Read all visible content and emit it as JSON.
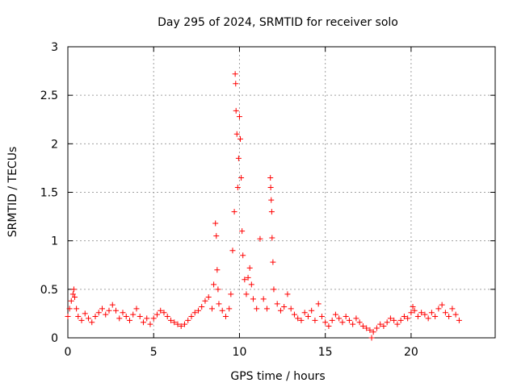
{
  "chart_data": {
    "type": "scatter",
    "title": "Day 295 of 2024, SRMTID for receiver solo",
    "xlabel": "GPS time / hours",
    "ylabel": "SRMTID / TECUs",
    "xlim": [
      0,
      24.9
    ],
    "ylim": [
      0,
      3
    ],
    "xticks": [
      0,
      5,
      10,
      15,
      20
    ],
    "xtick_labels": [
      "0",
      "5",
      "10",
      "15",
      "20"
    ],
    "yticks": [
      0,
      0.5,
      1,
      1.5,
      2,
      2.5,
      3
    ],
    "ytick_labels": [
      "0",
      "0.5",
      "1",
      "1.5",
      "2",
      "2.5",
      "3"
    ],
    "grid": true,
    "marker": "+",
    "series": [
      {
        "name": "SRMTID",
        "color": "#ff0000",
        "points": [
          [
            0.0,
            0.22
          ],
          [
            0.1,
            0.3
          ],
          [
            0.2,
            0.38
          ],
          [
            0.3,
            0.45
          ],
          [
            0.35,
            0.5
          ],
          [
            0.4,
            0.42
          ],
          [
            0.5,
            0.3
          ],
          [
            0.6,
            0.22
          ],
          [
            0.8,
            0.18
          ],
          [
            1.0,
            0.25
          ],
          [
            1.2,
            0.2
          ],
          [
            1.4,
            0.16
          ],
          [
            1.6,
            0.22
          ],
          [
            1.8,
            0.26
          ],
          [
            2.0,
            0.3
          ],
          [
            2.2,
            0.24
          ],
          [
            2.4,
            0.28
          ],
          [
            2.6,
            0.34
          ],
          [
            2.8,
            0.28
          ],
          [
            3.0,
            0.2
          ],
          [
            3.2,
            0.26
          ],
          [
            3.4,
            0.22
          ],
          [
            3.6,
            0.18
          ],
          [
            3.8,
            0.24
          ],
          [
            4.0,
            0.3
          ],
          [
            4.2,
            0.22
          ],
          [
            4.4,
            0.16
          ],
          [
            4.6,
            0.2
          ],
          [
            4.8,
            0.14
          ],
          [
            5.0,
            0.2
          ],
          [
            5.2,
            0.24
          ],
          [
            5.4,
            0.28
          ],
          [
            5.6,
            0.26
          ],
          [
            5.8,
            0.22
          ],
          [
            6.0,
            0.18
          ],
          [
            6.2,
            0.16
          ],
          [
            6.4,
            0.14
          ],
          [
            6.6,
            0.12
          ],
          [
            6.8,
            0.14
          ],
          [
            7.0,
            0.18
          ],
          [
            7.2,
            0.22
          ],
          [
            7.4,
            0.26
          ],
          [
            7.6,
            0.28
          ],
          [
            7.8,
            0.32
          ],
          [
            8.0,
            0.38
          ],
          [
            8.2,
            0.42
          ],
          [
            8.4,
            0.3
          ],
          [
            8.5,
            0.55
          ],
          [
            8.6,
            1.18
          ],
          [
            8.65,
            1.05
          ],
          [
            8.7,
            0.7
          ],
          [
            8.75,
            0.5
          ],
          [
            8.8,
            0.35
          ],
          [
            9.0,
            0.28
          ],
          [
            9.2,
            0.22
          ],
          [
            9.4,
            0.3
          ],
          [
            9.5,
            0.45
          ],
          [
            9.6,
            0.9
          ],
          [
            9.7,
            1.3
          ],
          [
            9.75,
            2.72
          ],
          [
            9.78,
            2.62
          ],
          [
            9.8,
            2.34
          ],
          [
            9.85,
            2.1
          ],
          [
            9.9,
            1.55
          ],
          [
            9.95,
            1.85
          ],
          [
            10.0,
            2.28
          ],
          [
            10.05,
            2.05
          ],
          [
            10.1,
            1.65
          ],
          [
            10.15,
            1.1
          ],
          [
            10.2,
            0.85
          ],
          [
            10.3,
            0.6
          ],
          [
            10.4,
            0.45
          ],
          [
            10.5,
            0.62
          ],
          [
            10.6,
            0.72
          ],
          [
            10.7,
            0.55
          ],
          [
            10.8,
            0.4
          ],
          [
            11.0,
            0.3
          ],
          [
            11.2,
            1.02
          ],
          [
            11.4,
            0.4
          ],
          [
            11.6,
            0.3
          ],
          [
            11.8,
            1.65
          ],
          [
            11.82,
            1.55
          ],
          [
            11.85,
            1.42
          ],
          [
            11.88,
            1.3
          ],
          [
            11.9,
            1.03
          ],
          [
            11.95,
            0.78
          ],
          [
            12.0,
            0.5
          ],
          [
            12.2,
            0.35
          ],
          [
            12.4,
            0.28
          ],
          [
            12.6,
            0.32
          ],
          [
            12.8,
            0.45
          ],
          [
            13.0,
            0.3
          ],
          [
            13.2,
            0.24
          ],
          [
            13.4,
            0.2
          ],
          [
            13.6,
            0.18
          ],
          [
            13.8,
            0.26
          ],
          [
            14.0,
            0.22
          ],
          [
            14.2,
            0.28
          ],
          [
            14.4,
            0.18
          ],
          [
            14.6,
            0.35
          ],
          [
            14.8,
            0.22
          ],
          [
            15.0,
            0.16
          ],
          [
            15.2,
            0.12
          ],
          [
            15.4,
            0.18
          ],
          [
            15.6,
            0.24
          ],
          [
            15.8,
            0.2
          ],
          [
            16.0,
            0.16
          ],
          [
            16.2,
            0.22
          ],
          [
            16.4,
            0.18
          ],
          [
            16.6,
            0.14
          ],
          [
            16.8,
            0.2
          ],
          [
            17.0,
            0.16
          ],
          [
            17.2,
            0.12
          ],
          [
            17.4,
            0.1
          ],
          [
            17.6,
            0.08
          ],
          [
            17.7,
            0.0
          ],
          [
            17.8,
            0.06
          ],
          [
            18.0,
            0.1
          ],
          [
            18.2,
            0.14
          ],
          [
            18.4,
            0.12
          ],
          [
            18.6,
            0.16
          ],
          [
            18.8,
            0.2
          ],
          [
            19.0,
            0.18
          ],
          [
            19.2,
            0.14
          ],
          [
            19.4,
            0.18
          ],
          [
            19.6,
            0.22
          ],
          [
            19.8,
            0.2
          ],
          [
            20.0,
            0.26
          ],
          [
            20.1,
            0.32
          ],
          [
            20.2,
            0.28
          ],
          [
            20.4,
            0.22
          ],
          [
            20.6,
            0.26
          ],
          [
            20.8,
            0.24
          ],
          [
            21.0,
            0.2
          ],
          [
            21.2,
            0.26
          ],
          [
            21.4,
            0.22
          ],
          [
            21.6,
            0.3
          ],
          [
            21.8,
            0.34
          ],
          [
            22.0,
            0.26
          ],
          [
            22.2,
            0.22
          ],
          [
            22.4,
            0.3
          ],
          [
            22.6,
            0.24
          ],
          [
            22.8,
            0.18
          ]
        ]
      }
    ]
  }
}
